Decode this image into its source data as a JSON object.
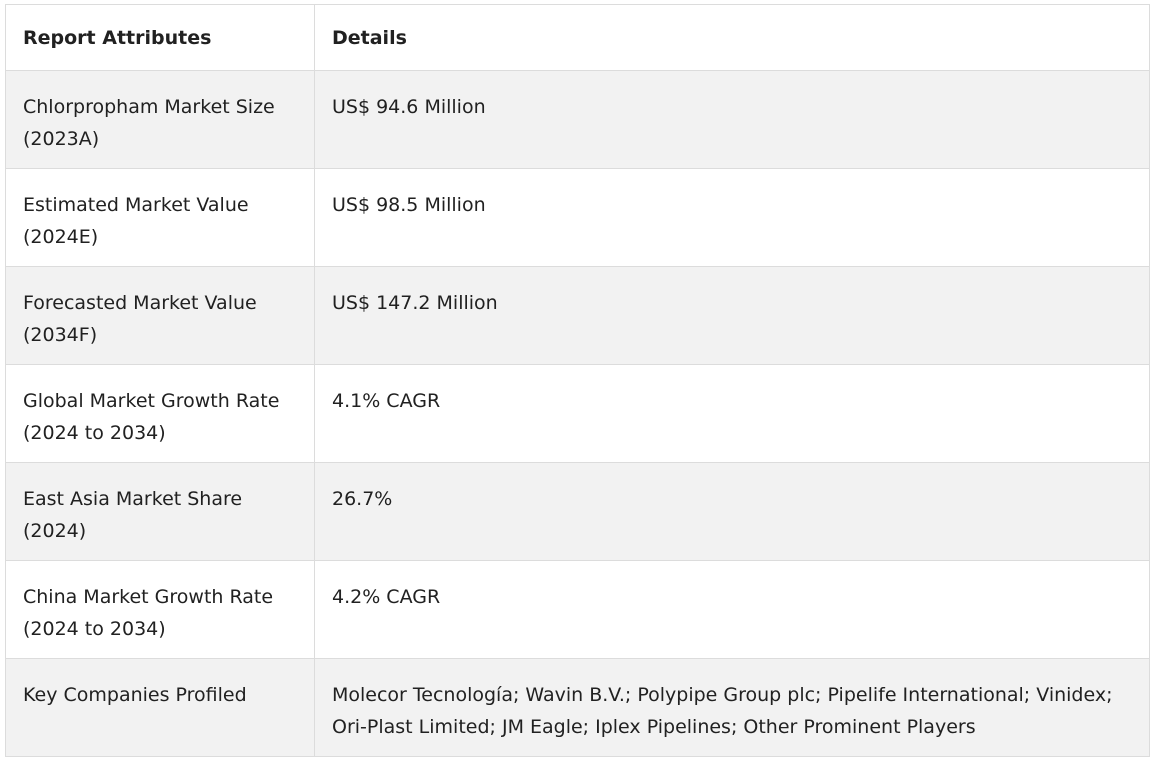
{
  "table": {
    "headers": {
      "attribute": "Report Attributes",
      "details": "Details"
    },
    "rows": [
      {
        "attribute_line1": "Chlorpropham Market Size",
        "attribute_line2": "(2023A)",
        "details_line1": "US$ 94.6 Million",
        "details_line2": ""
      },
      {
        "attribute_line1": "Estimated Market Value",
        "attribute_line2": "(2024E)",
        "details_line1": "US$ 98.5 Million",
        "details_line2": ""
      },
      {
        "attribute_line1": "Forecasted Market Value",
        "attribute_line2": "(2034F)",
        "details_line1": "US$ 147.2 Million",
        "details_line2": ""
      },
      {
        "attribute_line1": "Global Market Growth Rate",
        "attribute_line2": "(2024 to 2034)",
        "details_line1": "4.1% CAGR",
        "details_line2": ""
      },
      {
        "attribute_line1": "East Asia Market Share",
        "attribute_line2": "(2024)",
        "details_line1": "26.7%",
        "details_line2": ""
      },
      {
        "attribute_line1": "China Market Growth Rate",
        "attribute_line2": "(2024 to 2034)",
        "details_line1": "4.2% CAGR",
        "details_line2": ""
      },
      {
        "attribute_line1": "Key Companies Profiled",
        "attribute_line2": "",
        "details_line1": "Molecor Tecnología; Wavin B.V.; Polypipe Group plc; Pipelife International; Vinidex;",
        "details_line2": "Ori-Plast Limited; JM Eagle; Iplex Pipelines; Other Prominent Players"
      }
    ]
  }
}
